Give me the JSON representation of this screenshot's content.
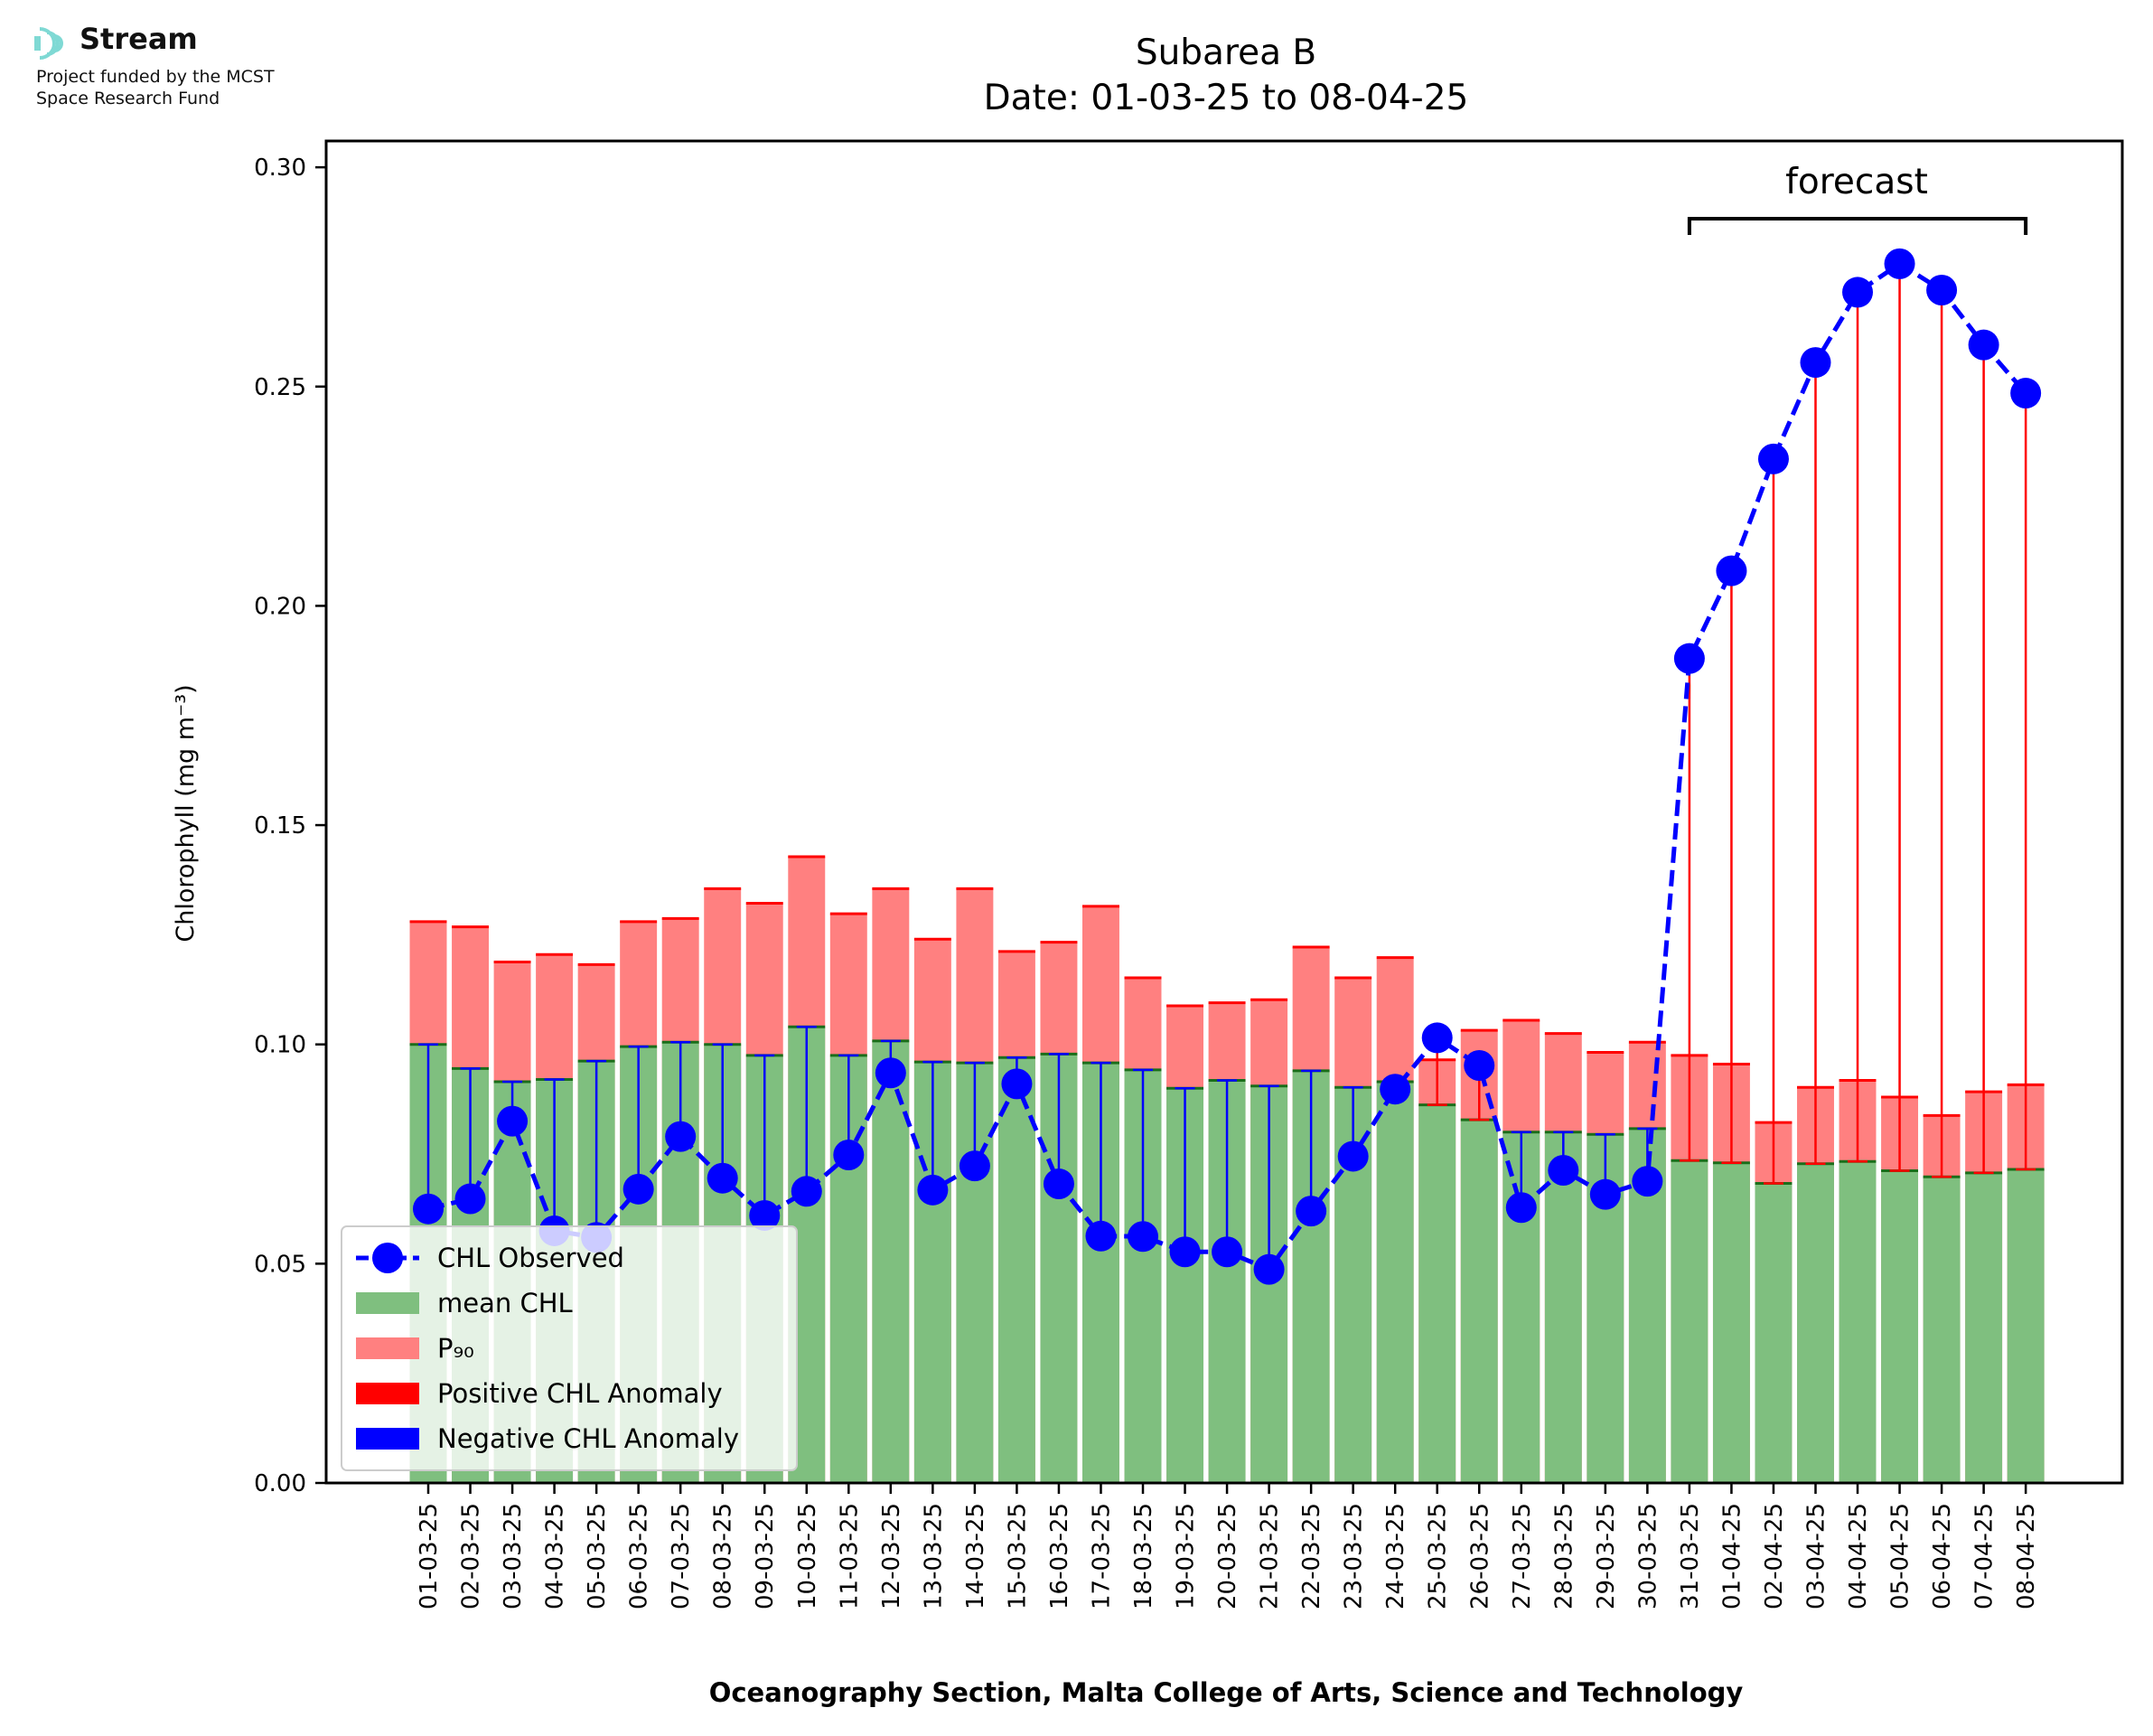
{
  "logo": {
    "name": "Stream",
    "line1": "Project funded by the MCST",
    "line2": "Space Research Fund",
    "color": "#7fd9d4"
  },
  "chart_data": {
    "type": "bar",
    "title": "Subarea B",
    "subtitle": "Date: 01-03-25 to 08-04-25",
    "ylabel": "Chlorophyll (mg m⁻³)",
    "xlabel": "Oceanography Section, Malta College of Arts, Science and Technology",
    "ylim": [
      0,
      0.306
    ],
    "yticks": [
      0.0,
      0.05,
      0.1,
      0.15,
      0.2,
      0.25,
      0.3
    ],
    "ytick_labels": [
      "0.00",
      "0.05",
      "0.10",
      "0.15",
      "0.20",
      "0.25",
      "0.30"
    ],
    "forecast_label": "forecast",
    "forecast_range": [
      "31-03-25",
      "08-04-25"
    ],
    "legend_position": "lower-left",
    "categories": [
      "01-03-25",
      "02-03-25",
      "03-03-25",
      "04-03-25",
      "05-03-25",
      "06-03-25",
      "07-03-25",
      "08-03-25",
      "09-03-25",
      "10-03-25",
      "11-03-25",
      "12-03-25",
      "13-03-25",
      "14-03-25",
      "15-03-25",
      "16-03-25",
      "17-03-25",
      "18-03-25",
      "19-03-25",
      "20-03-25",
      "21-03-25",
      "22-03-25",
      "23-03-25",
      "24-03-25",
      "25-03-25",
      "26-03-25",
      "27-03-25",
      "28-03-25",
      "29-03-25",
      "30-03-25",
      "31-03-25",
      "01-04-25",
      "02-04-25",
      "03-04-25",
      "04-04-25",
      "05-04-25",
      "06-04-25",
      "07-04-25",
      "08-04-25"
    ],
    "series": [
      {
        "name": "CHL Observed",
        "color": "#0000ff",
        "values": [
          0.0625,
          0.0648,
          0.0825,
          0.0575,
          0.056,
          0.067,
          0.079,
          0.0695,
          0.061,
          0.0665,
          0.0748,
          0.0935,
          0.0668,
          0.0723,
          0.091,
          0.0682,
          0.0563,
          0.0562,
          0.0527,
          0.0527,
          0.0487,
          0.062,
          0.0745,
          0.0898,
          0.1015,
          0.0952,
          0.0628,
          0.0713,
          0.0658,
          0.0688,
          0.188,
          0.208,
          0.2335,
          0.2555,
          0.2715,
          0.278,
          0.272,
          0.2595,
          0.2485
        ]
      },
      {
        "name": "mean CHL",
        "color": "#7fbf7f",
        "values": [
          0.1,
          0.0945,
          0.0915,
          0.092,
          0.0962,
          0.0995,
          0.1005,
          0.1,
          0.0975,
          0.104,
          0.0975,
          0.1008,
          0.096,
          0.0958,
          0.097,
          0.0978,
          0.0958,
          0.0942,
          0.09,
          0.0918,
          0.0905,
          0.094,
          0.0902,
          0.0915,
          0.0862,
          0.0828,
          0.08,
          0.08,
          0.0795,
          0.0808,
          0.0735,
          0.073,
          0.0683,
          0.0728,
          0.0733,
          0.0712,
          0.0698,
          0.0707,
          0.0715
        ]
      },
      {
        "name": "P₉₀",
        "color": "#ff8080",
        "values": [
          0.128,
          0.1268,
          0.1188,
          0.1205,
          0.1182,
          0.128,
          0.1287,
          0.1355,
          0.1322,
          0.1428,
          0.1298,
          0.1355,
          0.124,
          0.1355,
          0.1212,
          0.1233,
          0.1315,
          0.1152,
          0.1088,
          0.1095,
          0.1102,
          0.1222,
          0.1152,
          0.1198,
          0.0965,
          0.1032,
          0.1055,
          0.1025,
          0.0982,
          0.1005,
          0.0975,
          0.0955,
          0.0822,
          0.0902,
          0.0918,
          0.088,
          0.0838,
          0.0892,
          0.0908
        ]
      },
      {
        "name": "Positive CHL Anomaly",
        "color": "#ff0000"
      },
      {
        "name": "Negative CHL Anomaly",
        "color": "#0000ff"
      }
    ]
  }
}
